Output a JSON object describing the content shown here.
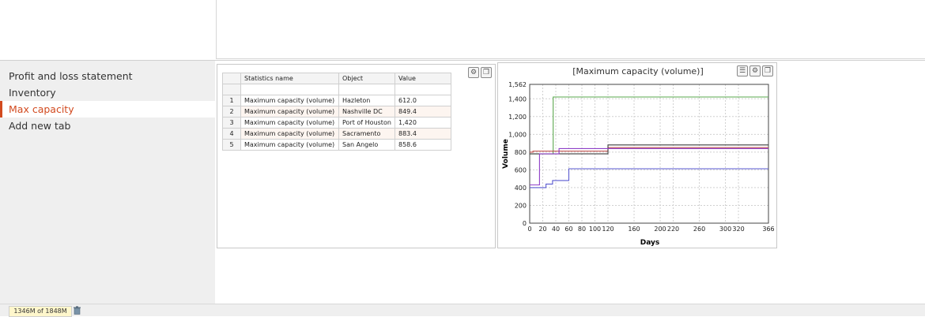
{
  "sidebar": {
    "items": [
      {
        "label": "Profit and loss statement"
      },
      {
        "label": "Inventory"
      },
      {
        "label": "Max capacity"
      },
      {
        "label": "Add new tab"
      }
    ]
  },
  "table": {
    "headers": [
      "Statistics name",
      "Object",
      "Value"
    ],
    "rows": [
      {
        "num": "1",
        "name": "Maximum capacity (volume)",
        "object": "Hazleton",
        "value": "612.0"
      },
      {
        "num": "2",
        "name": "Maximum capacity (volume)",
        "object": "Nashville DC",
        "value": "849.4"
      },
      {
        "num": "3",
        "name": "Maximum capacity (volume)",
        "object": "Port of Houston",
        "value": "1,420"
      },
      {
        "num": "4",
        "name": "Maximum capacity (volume)",
        "object": "Sacramento",
        "value": "883.4"
      },
      {
        "num": "5",
        "name": "Maximum capacity (volume)",
        "object": "San Angelo",
        "value": "858.6"
      }
    ]
  },
  "chart_data": {
    "type": "line",
    "title": "[Maximum capacity (volume)]",
    "xlabel": "Days",
    "ylabel": "Volume",
    "xlim": [
      0,
      366
    ],
    "ylim": [
      0,
      1562
    ],
    "xticks": [
      0,
      20,
      40,
      60,
      80,
      100,
      120,
      160,
      200,
      220,
      260,
      300,
      320,
      366
    ],
    "yticks": [
      0,
      200,
      400,
      600,
      800,
      1000,
      1200,
      1400,
      1562
    ],
    "grid": true,
    "series": [
      {
        "color": "#5aa84e",
        "points": [
          [
            0,
            780
          ],
          [
            36,
            780
          ],
          [
            36,
            1420
          ],
          [
            366,
            1420
          ]
        ]
      },
      {
        "color": "#c0504d",
        "points": [
          [
            0,
            800
          ],
          [
            5,
            800
          ],
          [
            5,
            810
          ],
          [
            120,
            810
          ],
          [
            120,
            850
          ],
          [
            366,
            850
          ]
        ]
      },
      {
        "color": "#3c3c3c",
        "points": [
          [
            0,
            780
          ],
          [
            120,
            780
          ],
          [
            120,
            880
          ],
          [
            366,
            880
          ]
        ]
      },
      {
        "color": "#8e3fc7",
        "points": [
          [
            0,
            430
          ],
          [
            15,
            430
          ],
          [
            15,
            780
          ],
          [
            45,
            780
          ],
          [
            45,
            840
          ],
          [
            366,
            840
          ]
        ]
      },
      {
        "color": "#5a5ad0",
        "points": [
          [
            0,
            400
          ],
          [
            25,
            400
          ],
          [
            25,
            440
          ],
          [
            35,
            440
          ],
          [
            35,
            480
          ],
          [
            60,
            480
          ],
          [
            60,
            612
          ],
          [
            366,
            612
          ]
        ]
      }
    ]
  },
  "status": {
    "memory": "1346M of 1848M"
  }
}
